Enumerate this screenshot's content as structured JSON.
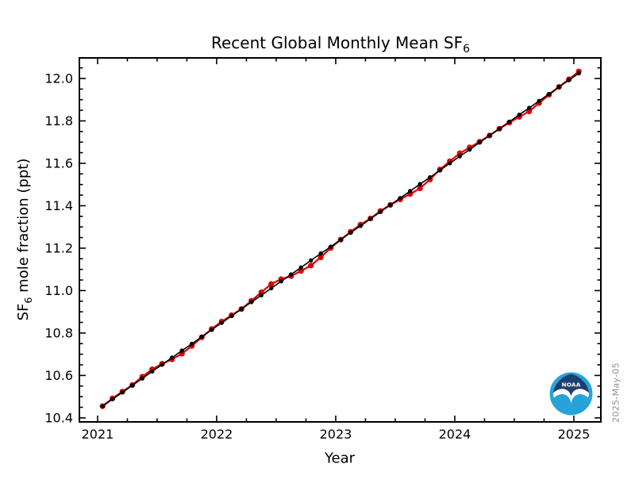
{
  "chart_data": {
    "type": "line",
    "title_parts": {
      "pre": "Recent Global Monthly Mean SF",
      "sub": "6"
    },
    "x_axis": {
      "label": "Year",
      "lim": [
        2020.847,
        2025.227
      ],
      "major": [
        {
          "v": 2021,
          "label": "2021"
        },
        {
          "v": 2022,
          "label": "2022"
        },
        {
          "v": 2023,
          "label": "2023"
        },
        {
          "v": 2024,
          "label": "2024"
        },
        {
          "v": 2025,
          "label": "2025"
        }
      ],
      "minor_step": 0.25
    },
    "y_axis": {
      "label_parts": {
        "pre": "SF",
        "sub": "6",
        "post": " mole fraction (ppt)"
      },
      "lim": [
        10.381,
        12.097
      ],
      "major": [
        {
          "v": 10.4,
          "label": "10.4"
        },
        {
          "v": 10.6,
          "label": "10.6"
        },
        {
          "v": 10.8,
          "label": "10.8"
        },
        {
          "v": 11.0,
          "label": "11.0"
        },
        {
          "v": 11.2,
          "label": "11.2"
        },
        {
          "v": 11.4,
          "label": "11.4"
        },
        {
          "v": 11.6,
          "label": "11.6"
        },
        {
          "v": 11.8,
          "label": "11.8"
        },
        {
          "v": 12.0,
          "label": "12.0"
        }
      ],
      "minor_step": 0.05
    },
    "points": {
      "x": [
        2021.042,
        2021.125,
        2021.208,
        2021.292,
        2021.375,
        2021.458,
        2021.542,
        2021.625,
        2021.708,
        2021.792,
        2021.875,
        2021.958,
        2022.042,
        2022.125,
        2022.208,
        2022.292,
        2022.375,
        2022.458,
        2022.542,
        2022.625,
        2022.708,
        2022.792,
        2022.875,
        2022.958,
        2023.042,
        2023.125,
        2023.208,
        2023.292,
        2023.375,
        2023.458,
        2023.542,
        2023.625,
        2023.708,
        2023.792,
        2023.875,
        2023.958,
        2024.042,
        2024.125,
        2024.208,
        2024.292,
        2024.375,
        2024.458,
        2024.542,
        2024.625,
        2024.708,
        2024.792,
        2024.875,
        2024.958,
        2025.042
      ]
    },
    "series": [
      {
        "id": "monthly",
        "name": "monthly mean",
        "color": "#dd0000",
        "values": [
          10.455,
          10.492,
          10.524,
          10.555,
          10.594,
          10.629,
          10.655,
          10.676,
          10.703,
          10.739,
          10.78,
          10.819,
          10.854,
          10.884,
          10.913,
          10.952,
          10.992,
          11.031,
          11.054,
          11.068,
          11.093,
          11.118,
          11.157,
          11.201,
          11.24,
          11.277,
          11.311,
          11.34,
          11.375,
          11.404,
          11.43,
          11.455,
          11.482,
          11.524,
          11.571,
          11.61,
          11.647,
          11.675,
          11.702,
          11.731,
          11.763,
          11.792,
          11.819,
          11.845,
          11.884,
          11.923,
          11.96,
          11.996,
          12.033
        ]
      },
      {
        "id": "trend",
        "name": "trend",
        "color": "#000000",
        "values": [
          10.455,
          10.488,
          10.52,
          10.553,
          10.586,
          10.619,
          10.651,
          10.684,
          10.717,
          10.749,
          10.782,
          10.815,
          10.848,
          10.88,
          10.913,
          10.946,
          10.978,
          11.011,
          11.044,
          11.076,
          11.109,
          11.142,
          11.175,
          11.207,
          11.24,
          11.273,
          11.305,
          11.338,
          11.371,
          11.404,
          11.436,
          11.469,
          11.502,
          11.534,
          11.567,
          11.6,
          11.633,
          11.665,
          11.698,
          11.731,
          11.763,
          11.796,
          11.829,
          11.861,
          11.894,
          11.927,
          11.96,
          11.992,
          12.025
        ]
      }
    ],
    "annotations": {
      "date_stamp": "2025-May-05",
      "logo_text": "NOAA"
    },
    "colors": {
      "axis": "#000000",
      "monthly": "#dd0000",
      "trend": "#000000",
      "date_stamp": "#8f8f8f",
      "logo_navy": "#1c3e70",
      "logo_cyan": "#27a3d9"
    }
  }
}
